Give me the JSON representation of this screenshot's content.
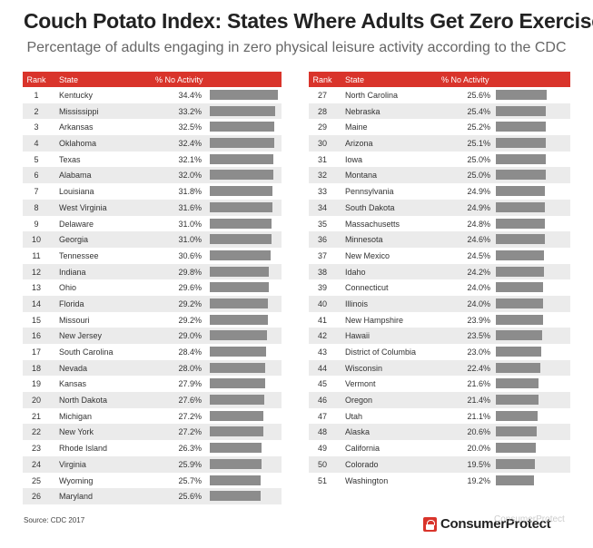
{
  "title": "Couch Potato Index: States Where Adults Get Zero Exercise",
  "subtitle": "Percentage of adults engaging in zero physical leisure activity according to the CDC",
  "source": "Source: CDC 2017",
  "logo_text": "ConsumerProtect",
  "watermark": "ConsumerProtect",
  "colors": {
    "header": "#d9342b",
    "bar": "#8c8c8c",
    "row_alt": "#ebebeb"
  },
  "chart_data": {
    "type": "table",
    "columns": [
      "Rank",
      "State",
      "% No Activity"
    ],
    "rows": [
      {
        "rank": "1",
        "state": "Kentucky",
        "value": 34.4
      },
      {
        "rank": "2",
        "state": "Mississippi",
        "value": 33.2
      },
      {
        "rank": "3",
        "state": "Arkansas",
        "value": 32.5
      },
      {
        "rank": "4",
        "state": "Oklahoma",
        "value": 32.4
      },
      {
        "rank": "5",
        "state": "Texas",
        "value": 32.1
      },
      {
        "rank": "6",
        "state": "Alabama",
        "value": 32.0
      },
      {
        "rank": "7",
        "state": "Louisiana",
        "value": 31.8
      },
      {
        "rank": "8",
        "state": "West Virginia",
        "value": 31.6
      },
      {
        "rank": "9",
        "state": "Delaware",
        "value": 31.0
      },
      {
        "rank": "10",
        "state": "Georgia",
        "value": 31.0
      },
      {
        "rank": "11",
        "state": "Tennessee",
        "value": 30.6
      },
      {
        "rank": "12",
        "state": "Indiana",
        "value": 29.8
      },
      {
        "rank": "13",
        "state": "Ohio",
        "value": 29.6
      },
      {
        "rank": "14",
        "state": "Florida",
        "value": 29.2
      },
      {
        "rank": "15",
        "state": "Missouri",
        "value": 29.2
      },
      {
        "rank": "16",
        "state": "New Jersey",
        "value": 29.0
      },
      {
        "rank": "17",
        "state": "South Carolina",
        "value": 28.4
      },
      {
        "rank": "18",
        "state": "Nevada",
        "value": 28.0
      },
      {
        "rank": "19",
        "state": "Kansas",
        "value": 27.9
      },
      {
        "rank": "20",
        "state": "North Dakota",
        "value": 27.6
      },
      {
        "rank": "21",
        "state": "Michigan",
        "value": 27.2
      },
      {
        "rank": "22",
        "state": "New York",
        "value": 27.2
      },
      {
        "rank": "23",
        "state": "Rhode Island",
        "value": 26.3
      },
      {
        "rank": "24",
        "state": "Virginia",
        "value": 25.9
      },
      {
        "rank": "25",
        "state": "Wyoming",
        "value": 25.7
      },
      {
        "rank": "26",
        "state": "Maryland",
        "value": 25.6
      },
      {
        "rank": "27",
        "state": "North Carolina",
        "value": 25.6
      },
      {
        "rank": "28",
        "state": "Nebraska",
        "value": 25.4
      },
      {
        "rank": "29",
        "state": "Maine",
        "value": 25.2
      },
      {
        "rank": "30",
        "state": "Arizona",
        "value": 25.1
      },
      {
        "rank": "31",
        "state": "Iowa",
        "value": 25.0
      },
      {
        "rank": "32",
        "state": "Montana",
        "value": 25.0
      },
      {
        "rank": "33",
        "state": "Pennsylvania",
        "value": 24.9
      },
      {
        "rank": "34",
        "state": "South Dakota",
        "value": 24.9
      },
      {
        "rank": "35",
        "state": "Massachusetts",
        "value": 24.8
      },
      {
        "rank": "36",
        "state": "Minnesota",
        "value": 24.6
      },
      {
        "rank": "37",
        "state": "New Mexico",
        "value": 24.5
      },
      {
        "rank": "38",
        "state": "Idaho",
        "value": 24.2
      },
      {
        "rank": "39",
        "state": "Connecticut",
        "value": 24.0
      },
      {
        "rank": "40",
        "state": "Illinois",
        "value": 24.0
      },
      {
        "rank": "41",
        "state": "New Hampshire",
        "value": 23.9
      },
      {
        "rank": "42",
        "state": "Hawaii",
        "value": 23.5
      },
      {
        "rank": "43",
        "state": "District of Columbia",
        "value": 23.0
      },
      {
        "rank": "44",
        "state": "Wisconsin",
        "value": 22.4
      },
      {
        "rank": "45",
        "state": "Vermont",
        "value": 21.6
      },
      {
        "rank": "46",
        "state": "Oregon",
        "value": 21.4
      },
      {
        "rank": "47",
        "state": "Utah",
        "value": 21.1
      },
      {
        "rank": "48",
        "state": "Alaska",
        "value": 20.6
      },
      {
        "rank": "49",
        "state": "California",
        "value": 20.0
      },
      {
        "rank": "50",
        "state": "Colorado",
        "value": 19.5
      },
      {
        "rank": "51",
        "state": "Washington",
        "value": 19.2
      }
    ]
  }
}
